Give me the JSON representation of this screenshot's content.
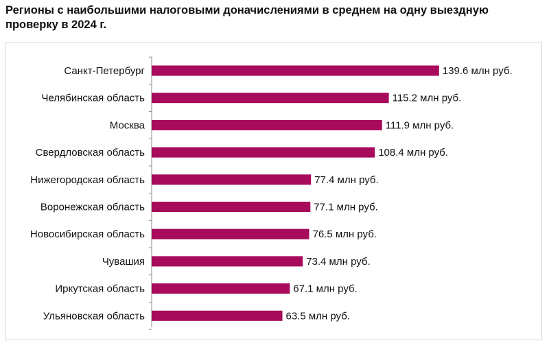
{
  "chart_data": {
    "type": "bar",
    "orientation": "horizontal",
    "title": "Регионы с наибольшими налоговыми доначислениями в среднем на одну выездную проверку в 2024 г.",
    "categories": [
      "Санкт-Петербург",
      "Челябинская область",
      "Москва",
      "Свердловская область",
      "Нижегородская область",
      "Воронежская область",
      "Новосибирская область",
      "Чувашия",
      "Иркутская область",
      "Ульяновская область"
    ],
    "values": [
      139.6,
      115.2,
      111.9,
      108.4,
      77.4,
      77.1,
      76.5,
      73.4,
      67.1,
      63.5
    ],
    "data_labels": [
      "139.6 млн руб.",
      "115.2 млн руб.",
      "111.9 млн руб.",
      "108.4 млн руб.",
      "77.4 млн руб.",
      "77.1 млн руб.",
      "76.5 млн руб.",
      "73.4 млн руб.",
      "67.1 млн руб.",
      "63.5 млн руб."
    ],
    "xlim": [
      0,
      160
    ],
    "xlabel": "",
    "ylabel": "",
    "grid": false,
    "legend": "none",
    "bar_color": "#A80A5C",
    "axis_color": "#8c8c8c"
  }
}
